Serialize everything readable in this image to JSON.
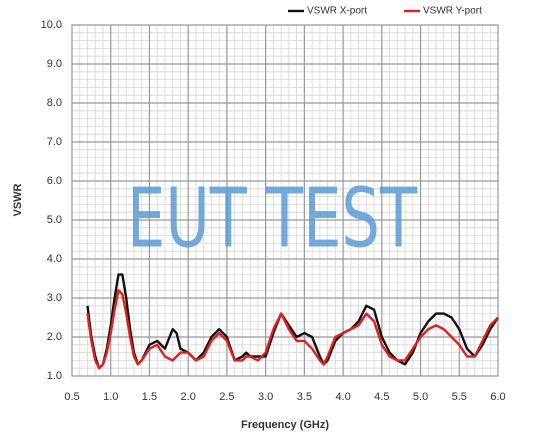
{
  "chart_data": {
    "type": "line",
    "watermark": "EUT TEST",
    "xlabel": "Frequency (GHz)",
    "ylabel": "VSWR",
    "x": [
      0.7,
      0.75,
      0.8,
      0.85,
      0.9,
      0.95,
      1.0,
      1.05,
      1.1,
      1.15,
      1.2,
      1.25,
      1.3,
      1.35,
      1.4,
      1.5,
      1.6,
      1.7,
      1.8,
      1.85,
      1.9,
      2.0,
      2.1,
      2.2,
      2.3,
      2.4,
      2.5,
      2.6,
      2.7,
      2.75,
      2.8,
      2.9,
      3.0,
      3.1,
      3.2,
      3.3,
      3.4,
      3.5,
      3.6,
      3.7,
      3.75,
      3.8,
      3.9,
      4.0,
      4.1,
      4.2,
      4.3,
      4.4,
      4.5,
      4.6,
      4.7,
      4.8,
      4.9,
      5.0,
      5.1,
      5.2,
      5.3,
      5.4,
      5.5,
      5.6,
      5.7,
      5.8,
      5.9,
      6.0
    ],
    "series": [
      {
        "name": "VSWR X-port",
        "color": "#111111",
        "values": [
          2.8,
          2.0,
          1.5,
          1.2,
          1.3,
          1.7,
          2.3,
          3.0,
          3.6,
          3.6,
          3.0,
          2.2,
          1.6,
          1.3,
          1.4,
          1.8,
          1.9,
          1.7,
          2.2,
          2.1,
          1.7,
          1.6,
          1.4,
          1.6,
          2.0,
          2.2,
          2.0,
          1.4,
          1.5,
          1.6,
          1.5,
          1.5,
          1.5,
          2.1,
          2.6,
          2.3,
          2.0,
          2.1,
          2.0,
          1.5,
          1.3,
          1.4,
          1.9,
          2.1,
          2.2,
          2.4,
          2.8,
          2.7,
          2.0,
          1.6,
          1.4,
          1.3,
          1.6,
          2.1,
          2.4,
          2.6,
          2.6,
          2.5,
          2.2,
          1.7,
          1.5,
          1.8,
          2.2,
          2.5
        ]
      },
      {
        "name": "VSWR Y-port",
        "color": "#e02020",
        "values": [
          2.6,
          1.9,
          1.4,
          1.2,
          1.3,
          1.6,
          2.1,
          2.7,
          3.2,
          3.1,
          2.6,
          2.0,
          1.5,
          1.3,
          1.4,
          1.7,
          1.8,
          1.5,
          1.4,
          1.5,
          1.6,
          1.6,
          1.4,
          1.5,
          1.9,
          2.1,
          1.9,
          1.4,
          1.4,
          1.5,
          1.5,
          1.4,
          1.6,
          2.2,
          2.6,
          2.2,
          1.9,
          1.9,
          1.7,
          1.4,
          1.3,
          1.5,
          2.0,
          2.1,
          2.2,
          2.3,
          2.6,
          2.4,
          1.8,
          1.5,
          1.4,
          1.4,
          1.7,
          2.0,
          2.2,
          2.3,
          2.2,
          2.0,
          1.8,
          1.5,
          1.5,
          1.9,
          2.3,
          2.5
        ]
      }
    ],
    "xlim": [
      0.5,
      6.0
    ],
    "xticks": [
      0.5,
      {
        "value": 1,
        "label": "1.0"
      },
      1.5,
      {
        "value": 2,
        "label": "2.0"
      },
      2.5,
      {
        "value": 3,
        "label": "3.0"
      },
      3.5,
      {
        "value": 4,
        "label": "4.0"
      },
      4.5,
      {
        "value": 5,
        "label": "5.0"
      },
      5.5,
      {
        "value": 6,
        "label": "6.0"
      }
    ],
    "ylim": [
      1,
      10
    ],
    "yticks": [
      {
        "value": 1,
        "label": "1.0"
      },
      {
        "value": 2,
        "label": "2.0"
      },
      {
        "value": 3,
        "label": "3.0"
      },
      {
        "value": 4,
        "label": "4.0"
      },
      {
        "value": 5,
        "label": "5.0"
      },
      {
        "value": 6,
        "label": "6.0"
      },
      {
        "value": 7,
        "label": "7.0"
      },
      {
        "value": 8,
        "label": "8.0"
      },
      {
        "value": 9,
        "label": "9.0"
      },
      {
        "value": 10,
        "label": "10.0"
      }
    ],
    "grid": true,
    "legend": "top-right"
  }
}
